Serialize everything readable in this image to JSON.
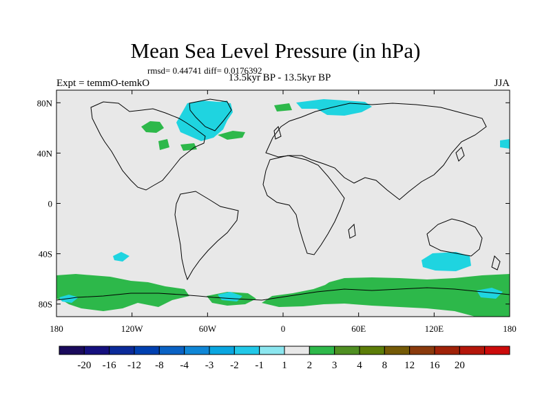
{
  "title": "Mean Sea Level Pressure (in hPa)",
  "stats": "rmsd= 0.44741 diff= 0.0176392",
  "experiment": "Expt = temmO-temkO",
  "period": "13.5kyr BP - 13.5kyr BP",
  "season": "JJA",
  "y_axis": {
    "ticks": [
      "80N",
      "40N",
      "0",
      "40S",
      "80S"
    ],
    "values": [
      80,
      40,
      0,
      -40,
      -80
    ]
  },
  "x_axis": {
    "ticks": [
      "180",
      "120W",
      "60W",
      "0",
      "60E",
      "120E",
      "180"
    ],
    "values": [
      -180,
      -120,
      -60,
      0,
      60,
      120,
      180
    ]
  },
  "colorbar": {
    "colors": [
      "#1a0a5c",
      "#15107e",
      "#0b2a99",
      "#0040b0",
      "#0a62c4",
      "#0f86d6",
      "#0aa6e0",
      "#22c8e8",
      "#8be6ef",
      "#e8e8e8",
      "#2eb84a",
      "#4f8f22",
      "#5c7d08",
      "#745a06",
      "#8a3a0c",
      "#a02208",
      "#b4160a",
      "#cc0b0b"
    ],
    "labels": [
      "-20",
      "-16",
      "-12",
      "-8",
      "-4",
      "-3",
      "-2",
      "-1",
      "1",
      "2",
      "3",
      "4",
      "8",
      "12",
      "16",
      "20"
    ]
  },
  "map_colors": {
    "background": "#e8e8e8",
    "positive": "#2db84a",
    "negative": "#1fd4e0"
  }
}
